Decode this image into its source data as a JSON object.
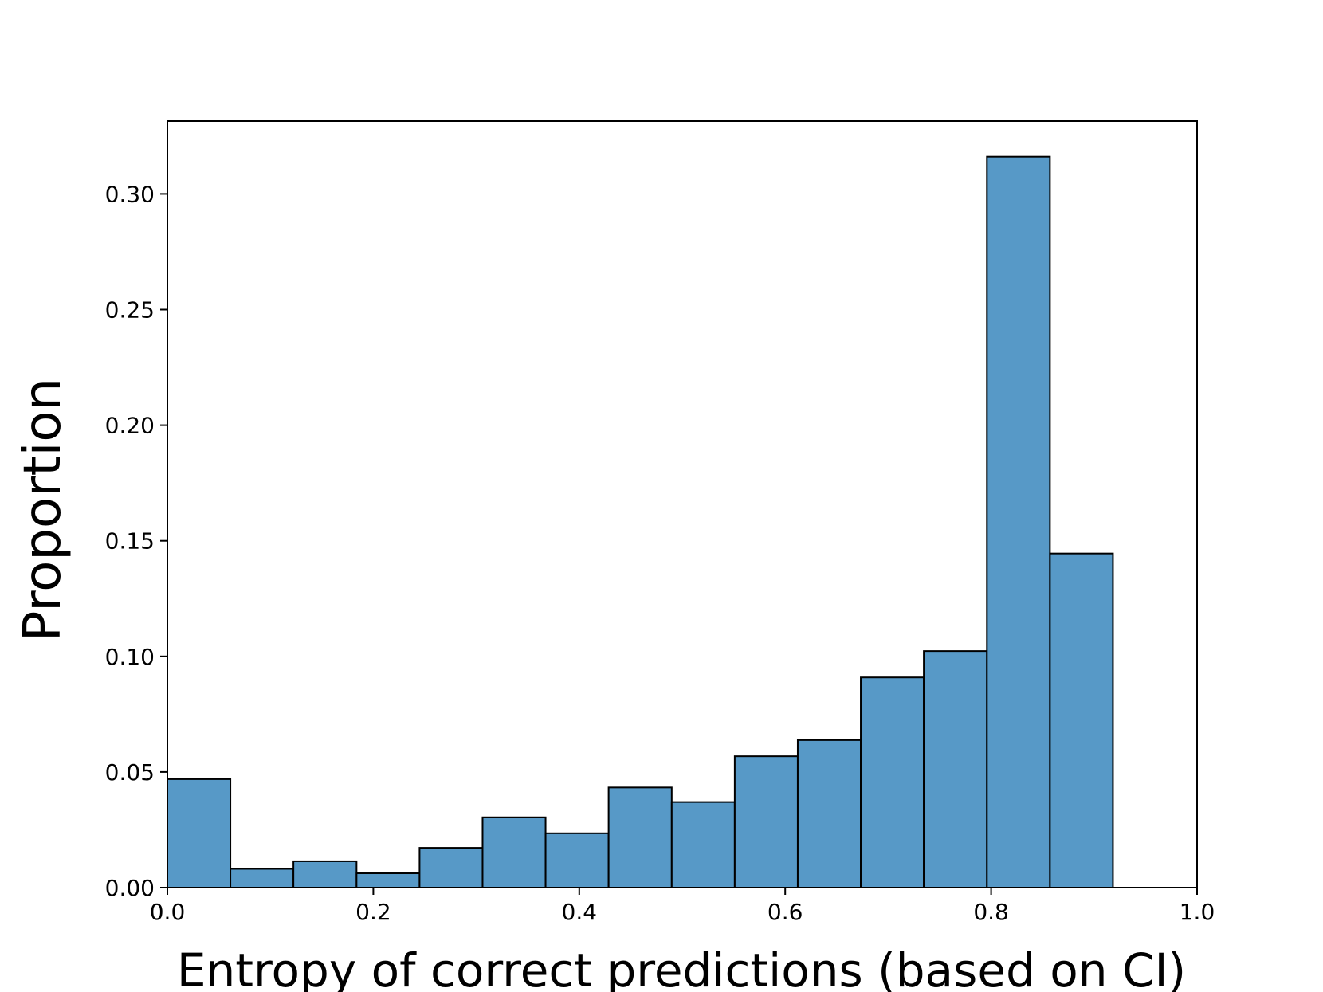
{
  "chart_data": {
    "type": "histogram",
    "xlabel": "Entropy of correct predictions (based on CI)",
    "ylabel": "Proportion",
    "bins": [
      0,
      0.0612,
      0.1224,
      0.1837,
      0.2449,
      0.3061,
      0.3673,
      0.4285,
      0.4898,
      0.551,
      0.6122,
      0.6734,
      0.7346,
      0.7959,
      0.8571,
      0.9183
    ],
    "values": [
      0.0469,
      0.0081,
      0.0114,
      0.0062,
      0.0172,
      0.0304,
      0.0235,
      0.0433,
      0.037,
      0.0568,
      0.0638,
      0.0909,
      0.1023,
      0.3161,
      0.1445
    ],
    "color": "#5799c7",
    "edgecolor": "#000000",
    "xlim": [
      0,
      1
    ],
    "xticks": [
      {
        "value": 0,
        "label": "0.0"
      },
      0.2,
      0.4,
      0.6,
      0.8,
      {
        "value": 1,
        "label": "1.0"
      }
    ],
    "ylim": [
      0,
      0.3315
    ],
    "yticks": [
      {
        "value": 0,
        "label": "0.00"
      },
      0.05,
      {
        "value": 0.1,
        "label": "0.10"
      },
      0.15,
      {
        "value": 0.2,
        "label": "0.20"
      },
      0.25,
      {
        "value": 0.3,
        "label": "0.30"
      }
    ]
  }
}
